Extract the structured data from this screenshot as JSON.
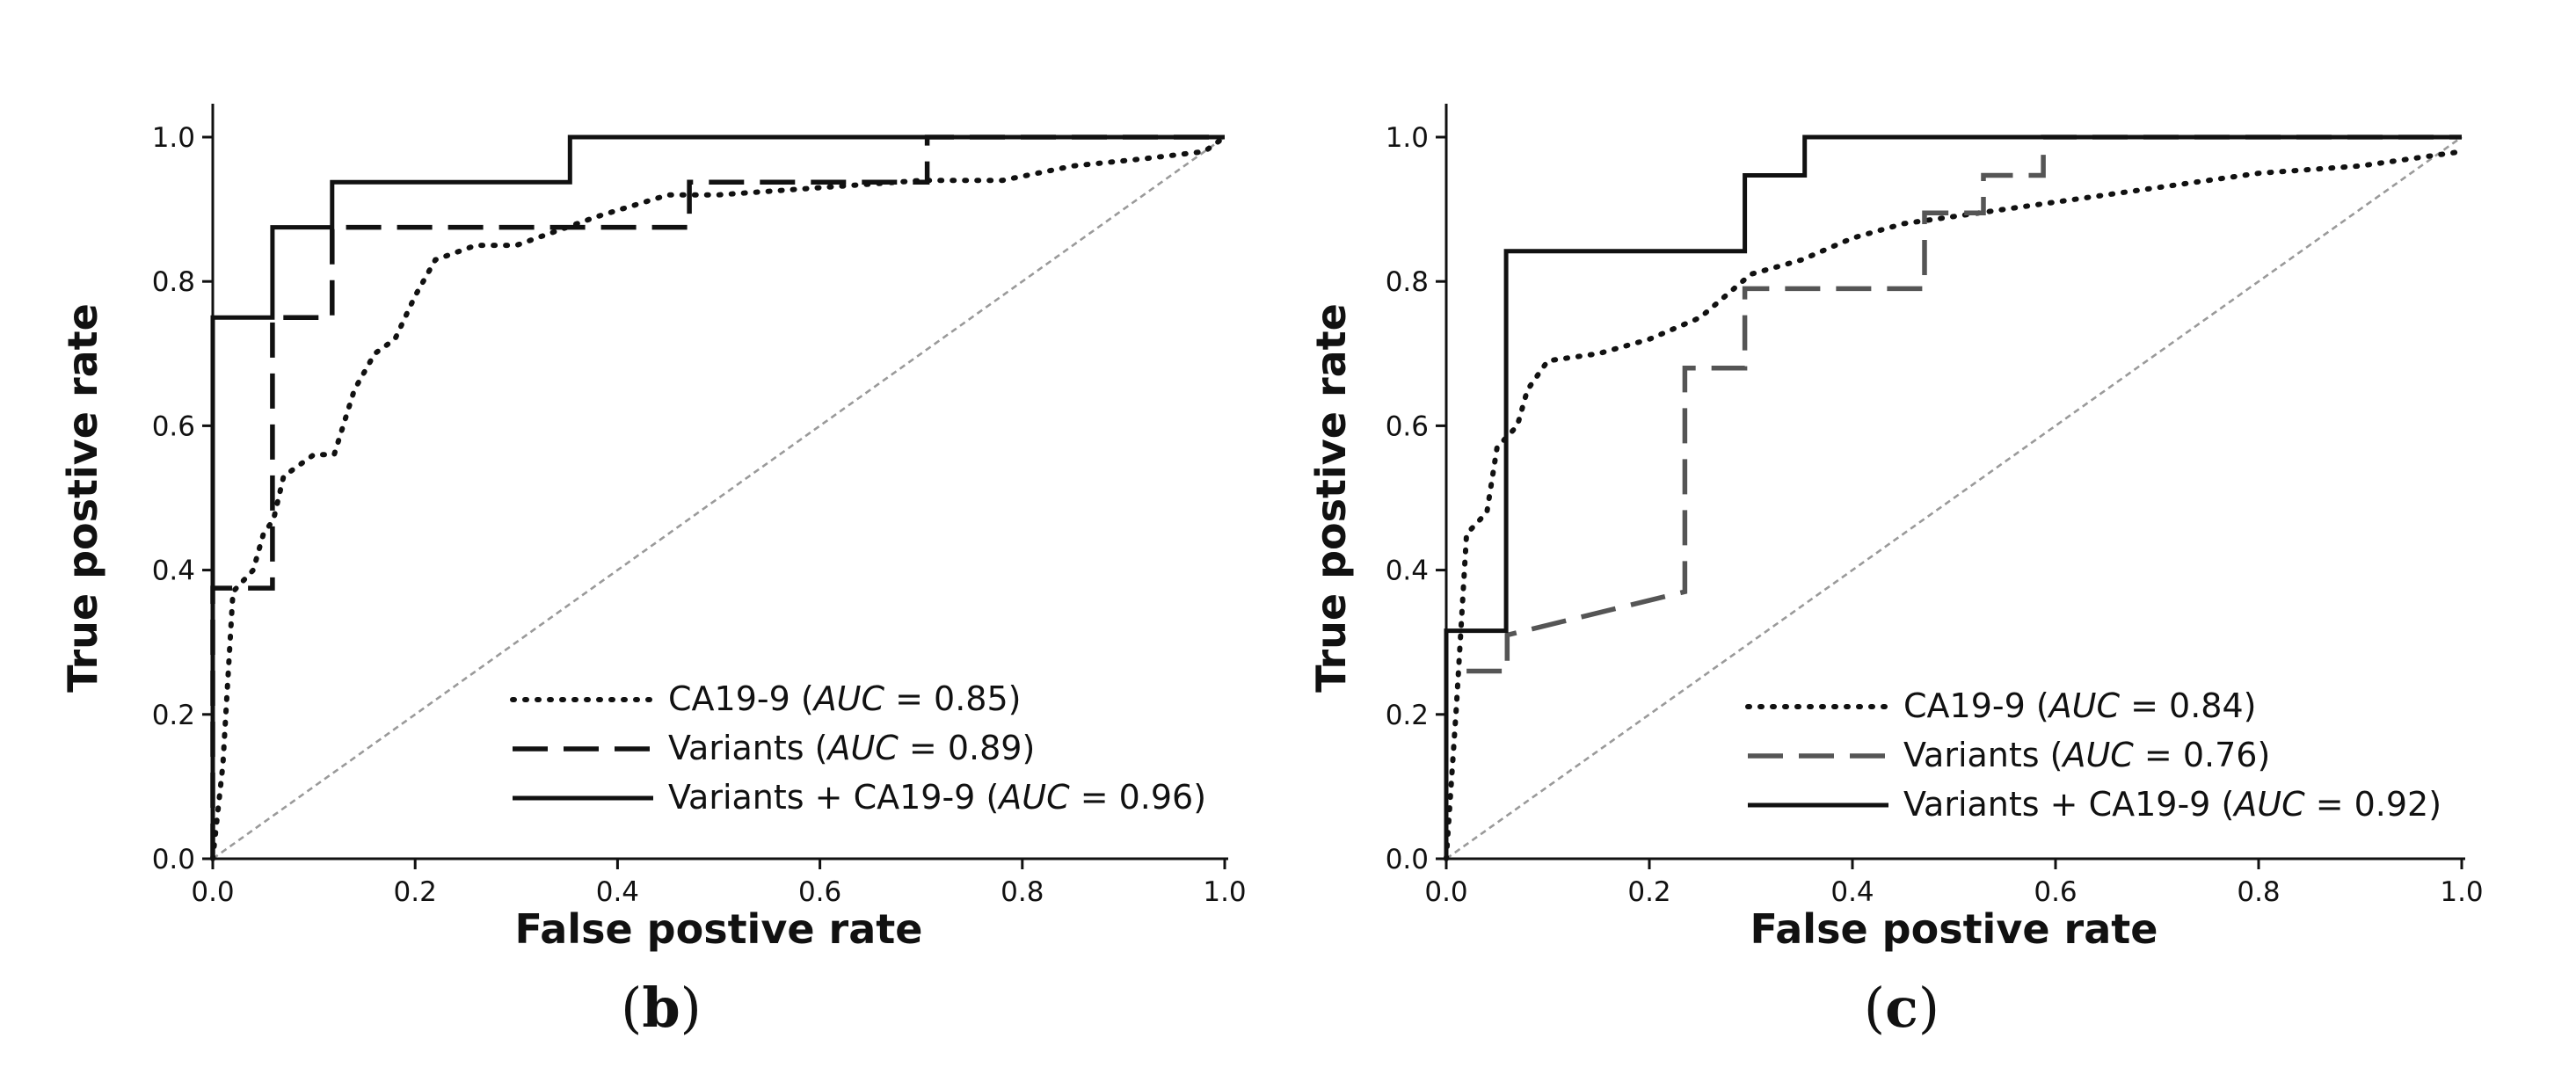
{
  "chart_data": [
    {
      "type": "line",
      "panel_label": "b",
      "xlabel": "False postive rate",
      "ylabel": "True postive rate",
      "xlim": [
        0.0,
        1.0
      ],
      "ylim": [
        0.0,
        1.0
      ],
      "xticks": [
        "0.0",
        "0.2",
        "0.4",
        "0.6",
        "0.8",
        "1.0"
      ],
      "yticks": [
        "0.0",
        "0.2",
        "0.4",
        "0.6",
        "0.8",
        "1.0"
      ],
      "legend_position": "lower-right",
      "series": [
        {
          "name": "CA19-9",
          "auc_label": "AUC",
          "auc_value": "0.85",
          "style": "dotted",
          "color": "#111111",
          "points": [
            [
              0,
              0
            ],
            [
              0.01,
              0.13
            ],
            [
              0.02,
              0.37
            ],
            [
              0.04,
              0.4
            ],
            [
              0.05,
              0.45
            ],
            [
              0.06,
              0.47
            ],
            [
              0.07,
              0.53
            ],
            [
              0.1,
              0.56
            ],
            [
              0.12,
              0.56
            ],
            [
              0.14,
              0.65
            ],
            [
              0.16,
              0.7
            ],
            [
              0.18,
              0.72
            ],
            [
              0.2,
              0.78
            ],
            [
              0.22,
              0.83
            ],
            [
              0.26,
              0.85
            ],
            [
              0.3,
              0.85
            ],
            [
              0.34,
              0.87
            ],
            [
              0.38,
              0.89
            ],
            [
              0.45,
              0.92
            ],
            [
              0.5,
              0.92
            ],
            [
              0.6,
              0.93
            ],
            [
              0.7,
              0.94
            ],
            [
              0.78,
              0.94
            ],
            [
              0.85,
              0.96
            ],
            [
              0.92,
              0.97
            ],
            [
              0.98,
              0.98
            ],
            [
              1.0,
              1.0
            ]
          ]
        },
        {
          "name": "Variants",
          "auc_label": "AUC",
          "auc_value": "0.89",
          "style": "dashed",
          "color": "#111111",
          "points": [
            [
              0,
              0
            ],
            [
              0,
              0.375
            ],
            [
              0.059,
              0.375
            ],
            [
              0.059,
              0.75
            ],
            [
              0.118,
              0.75
            ],
            [
              0.118,
              0.875
            ],
            [
              0.471,
              0.875
            ],
            [
              0.471,
              0.9375
            ],
            [
              0.706,
              0.9375
            ],
            [
              0.706,
              1.0
            ],
            [
              1.0,
              1.0
            ]
          ]
        },
        {
          "name": "Variants + CA19-9",
          "auc_label": "AUC",
          "auc_value": "0.96",
          "style": "solid",
          "color": "#111111",
          "points": [
            [
              0,
              0
            ],
            [
              0,
              0.75
            ],
            [
              0.059,
              0.75
            ],
            [
              0.059,
              0.875
            ],
            [
              0.118,
              0.875
            ],
            [
              0.118,
              0.9375
            ],
            [
              0.353,
              0.9375
            ],
            [
              0.353,
              1.0
            ],
            [
              1.0,
              1.0
            ]
          ]
        }
      ]
    },
    {
      "type": "line",
      "panel_label": "c",
      "xlabel": "False postive rate",
      "ylabel": "True postive rate",
      "xlim": [
        0.0,
        1.0
      ],
      "ylim": [
        0.0,
        1.0
      ],
      "xticks": [
        "0.0",
        "0.2",
        "0.4",
        "0.6",
        "0.8",
        "1.0"
      ],
      "yticks": [
        "0.0",
        "0.2",
        "0.4",
        "0.6",
        "0.8",
        "1.0"
      ],
      "legend_position": "lower-right",
      "series": [
        {
          "name": "CA19-9",
          "auc_label": "AUC",
          "auc_value": "0.84",
          "style": "dotted",
          "color": "#111111",
          "points": [
            [
              0,
              0
            ],
            [
              0.01,
              0.21
            ],
            [
              0.015,
              0.33
            ],
            [
              0.02,
              0.45
            ],
            [
              0.04,
              0.48
            ],
            [
              0.05,
              0.57
            ],
            [
              0.07,
              0.6
            ],
            [
              0.08,
              0.65
            ],
            [
              0.1,
              0.69
            ],
            [
              0.15,
              0.7
            ],
            [
              0.2,
              0.72
            ],
            [
              0.25,
              0.75
            ],
            [
              0.3,
              0.81
            ],
            [
              0.35,
              0.83
            ],
            [
              0.4,
              0.86
            ],
            [
              0.45,
              0.88
            ],
            [
              0.5,
              0.89
            ],
            [
              0.55,
              0.9
            ],
            [
              0.6,
              0.91
            ],
            [
              0.7,
              0.93
            ],
            [
              0.8,
              0.95
            ],
            [
              0.9,
              0.96
            ],
            [
              1.0,
              0.98
            ]
          ]
        },
        {
          "name": "Variants",
          "auc_label": "AUC",
          "auc_value": "0.76",
          "style": "dashed",
          "color": "#555555",
          "points": [
            [
              0.02,
              0.26
            ],
            [
              0.06,
              0.26
            ],
            [
              0.06,
              0.31
            ],
            [
              0.235,
              0.37
            ],
            [
              0.235,
              0.68
            ],
            [
              0.294,
              0.68
            ],
            [
              0.294,
              0.79
            ],
            [
              0.471,
              0.79
            ],
            [
              0.471,
              0.895
            ],
            [
              0.529,
              0.895
            ],
            [
              0.529,
              0.947
            ],
            [
              0.588,
              0.947
            ],
            [
              0.588,
              1.0
            ],
            [
              1.0,
              1.0
            ]
          ]
        },
        {
          "name": "Variants + CA19-9",
          "auc_label": "AUC",
          "auc_value": "0.92",
          "style": "solid",
          "color": "#111111",
          "points": [
            [
              0,
              0
            ],
            [
              0,
              0.316
            ],
            [
              0.059,
              0.316
            ],
            [
              0.059,
              0.842
            ],
            [
              0.294,
              0.842
            ],
            [
              0.294,
              0.947
            ],
            [
              0.353,
              0.947
            ],
            [
              0.353,
              1.0
            ],
            [
              1.0,
              1.0
            ]
          ]
        }
      ]
    }
  ]
}
